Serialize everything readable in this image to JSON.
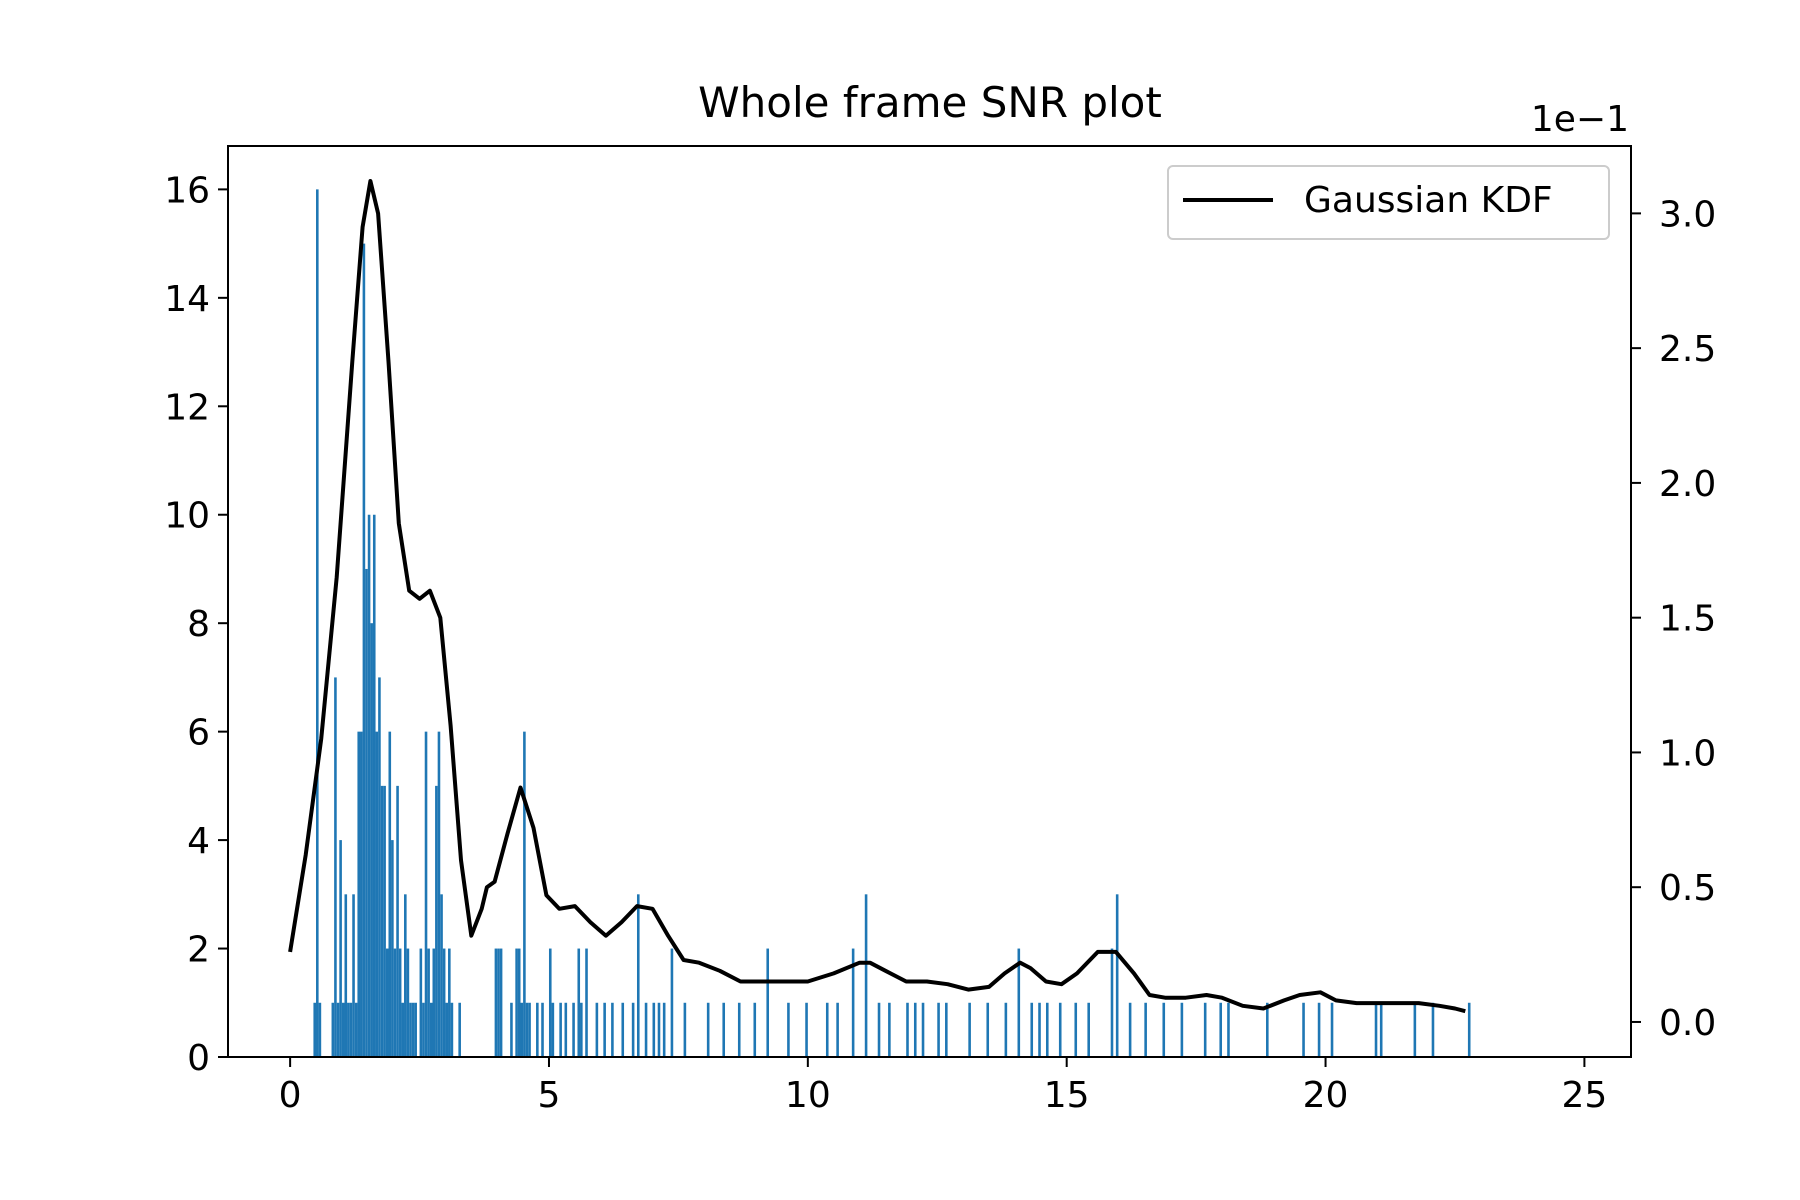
{
  "chart_data": {
    "type": "bar",
    "title": "Whole frame SNR plot",
    "xlabel": "",
    "ylabel": "",
    "xlim": [
      -1.2,
      25.9
    ],
    "ylim": [
      0,
      16.8
    ],
    "xticks": [
      0,
      5,
      10,
      15,
      20,
      25
    ],
    "yticks": [
      0,
      2,
      4,
      6,
      8,
      10,
      12,
      14,
      16
    ],
    "grid": false,
    "legend_position": "top-right",
    "bar_color": "#1f77b4",
    "line_color": "#000000",
    "histogram": {
      "bin_width": 0.05,
      "bins": [
        [
          0.45,
          1
        ],
        [
          0.5,
          16
        ],
        [
          0.55,
          1
        ],
        [
          0.8,
          1
        ],
        [
          0.85,
          7
        ],
        [
          0.9,
          1
        ],
        [
          0.95,
          4
        ],
        [
          1.0,
          1
        ],
        [
          1.05,
          3
        ],
        [
          1.1,
          1
        ],
        [
          1.15,
          1
        ],
        [
          1.2,
          3
        ],
        [
          1.25,
          1
        ],
        [
          1.3,
          6
        ],
        [
          1.35,
          6
        ],
        [
          1.4,
          15
        ],
        [
          1.45,
          9
        ],
        [
          1.5,
          10
        ],
        [
          1.55,
          8
        ],
        [
          1.6,
          10
        ],
        [
          1.65,
          6
        ],
        [
          1.7,
          7
        ],
        [
          1.75,
          5
        ],
        [
          1.8,
          5
        ],
        [
          1.85,
          2
        ],
        [
          1.9,
          6
        ],
        [
          1.95,
          4
        ],
        [
          2.0,
          2
        ],
        [
          2.05,
          5
        ],
        [
          2.1,
          2
        ],
        [
          2.15,
          1
        ],
        [
          2.2,
          3
        ],
        [
          2.25,
          2
        ],
        [
          2.3,
          1
        ],
        [
          2.35,
          1
        ],
        [
          2.4,
          1
        ],
        [
          2.5,
          2
        ],
        [
          2.55,
          1
        ],
        [
          2.6,
          6
        ],
        [
          2.65,
          2
        ],
        [
          2.7,
          1
        ],
        [
          2.75,
          2
        ],
        [
          2.8,
          5
        ],
        [
          2.85,
          6
        ],
        [
          2.9,
          3
        ],
        [
          2.95,
          2
        ],
        [
          3.0,
          1
        ],
        [
          3.05,
          2
        ],
        [
          3.1,
          1
        ],
        [
          3.25,
          1
        ],
        [
          3.95,
          2
        ],
        [
          4.0,
          2
        ],
        [
          4.05,
          2
        ],
        [
          4.25,
          1
        ],
        [
          4.35,
          2
        ],
        [
          4.4,
          2
        ],
        [
          4.45,
          1
        ],
        [
          4.5,
          6
        ],
        [
          4.55,
          1
        ],
        [
          4.6,
          1
        ],
        [
          4.75,
          1
        ],
        [
          4.85,
          1
        ],
        [
          5.0,
          2
        ],
        [
          5.05,
          1
        ],
        [
          5.2,
          1
        ],
        [
          5.3,
          1
        ],
        [
          5.45,
          1
        ],
        [
          5.55,
          2
        ],
        [
          5.6,
          1
        ],
        [
          5.7,
          2
        ],
        [
          5.9,
          1
        ],
        [
          6.05,
          1
        ],
        [
          6.2,
          1
        ],
        [
          6.4,
          1
        ],
        [
          6.6,
          1
        ],
        [
          6.7,
          3
        ],
        [
          6.85,
          1
        ],
        [
          7.0,
          1
        ],
        [
          7.1,
          1
        ],
        [
          7.2,
          1
        ],
        [
          7.35,
          2
        ],
        [
          7.6,
          1
        ],
        [
          8.05,
          1
        ],
        [
          8.35,
          1
        ],
        [
          8.65,
          1
        ],
        [
          8.95,
          1
        ],
        [
          9.2,
          2
        ],
        [
          9.6,
          1
        ],
        [
          9.95,
          1
        ],
        [
          10.35,
          1
        ],
        [
          10.55,
          1
        ],
        [
          10.85,
          2
        ],
        [
          11.1,
          3
        ],
        [
          11.35,
          1
        ],
        [
          11.55,
          1
        ],
        [
          11.9,
          1
        ],
        [
          12.05,
          1
        ],
        [
          12.2,
          1
        ],
        [
          12.5,
          1
        ],
        [
          12.65,
          1
        ],
        [
          13.1,
          1
        ],
        [
          13.45,
          1
        ],
        [
          13.8,
          1
        ],
        [
          14.05,
          2
        ],
        [
          14.3,
          1
        ],
        [
          14.45,
          1
        ],
        [
          14.6,
          1
        ],
        [
          14.85,
          1
        ],
        [
          15.15,
          1
        ],
        [
          15.4,
          1
        ],
        [
          15.85,
          2
        ],
        [
          15.95,
          3
        ],
        [
          16.2,
          1
        ],
        [
          16.5,
          1
        ],
        [
          16.85,
          1
        ],
        [
          17.2,
          1
        ],
        [
          17.65,
          1
        ],
        [
          17.95,
          1
        ],
        [
          18.1,
          1
        ],
        [
          18.85,
          1
        ],
        [
          19.55,
          1
        ],
        [
          19.85,
          1
        ],
        [
          20.1,
          1
        ],
        [
          20.95,
          1
        ],
        [
          21.05,
          1
        ],
        [
          21.7,
          1
        ],
        [
          22.05,
          1
        ],
        [
          22.75,
          1
        ]
      ]
    },
    "secondary_axis": {
      "offset_label": "1e−1",
      "ylim": [
        -0.13,
        3.25
      ],
      "yticks": [
        0.0,
        0.5,
        1.0,
        1.5,
        2.0,
        2.5,
        3.0
      ],
      "ytick_labels": [
        "0.0",
        "0.5",
        "1.0",
        "1.5",
        "2.0",
        "2.5",
        "3.0"
      ]
    },
    "series": [
      {
        "name": "Gaussian KDF",
        "type": "line",
        "axis": "secondary",
        "x": [
          0,
          0.3,
          0.6,
          0.9,
          1.2,
          1.4,
          1.55,
          1.7,
          1.9,
          2.1,
          2.3,
          2.5,
          2.7,
          2.9,
          3.1,
          3.3,
          3.5,
          3.7,
          3.8,
          3.95,
          4.2,
          4.45,
          4.7,
          4.95,
          5.2,
          5.5,
          5.8,
          6.1,
          6.4,
          6.7,
          7.0,
          7.3,
          7.6,
          7.9,
          8.3,
          8.7,
          9.1,
          9.5,
          10.0,
          10.5,
          11.0,
          11.2,
          11.5,
          11.9,
          12.3,
          12.7,
          13.1,
          13.5,
          13.8,
          14.1,
          14.3,
          14.6,
          14.9,
          15.2,
          15.6,
          15.95,
          16.3,
          16.6,
          16.9,
          17.3,
          17.7,
          18.0,
          18.4,
          18.8,
          19.2,
          19.5,
          19.9,
          20.2,
          20.6,
          21.0,
          21.4,
          21.8,
          22.2,
          22.5,
          22.7
        ],
        "y": [
          0.26,
          0.62,
          1.05,
          1.65,
          2.45,
          2.95,
          3.12,
          3.0,
          2.45,
          1.85,
          1.6,
          1.57,
          1.6,
          1.5,
          1.1,
          0.6,
          0.32,
          0.42,
          0.5,
          0.52,
          0.7,
          0.87,
          0.72,
          0.47,
          0.42,
          0.43,
          0.37,
          0.32,
          0.37,
          0.43,
          0.42,
          0.32,
          0.23,
          0.22,
          0.19,
          0.15,
          0.15,
          0.15,
          0.15,
          0.18,
          0.22,
          0.22,
          0.19,
          0.15,
          0.15,
          0.14,
          0.12,
          0.13,
          0.18,
          0.22,
          0.2,
          0.15,
          0.14,
          0.18,
          0.26,
          0.26,
          0.18,
          0.1,
          0.09,
          0.09,
          0.1,
          0.09,
          0.06,
          0.05,
          0.08,
          0.1,
          0.11,
          0.08,
          0.07,
          0.07,
          0.07,
          0.07,
          0.06,
          0.05,
          0.04
        ]
      }
    ]
  }
}
